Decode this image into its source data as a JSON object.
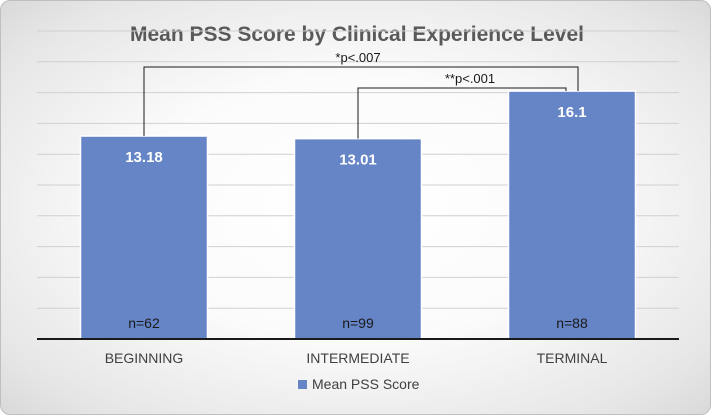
{
  "chart_data": {
    "type": "bar",
    "title": "Mean PSS Score by Clinical Experience Level",
    "categories": [
      "BEGINNING",
      "INTERMEDIATE",
      "TERMINAL"
    ],
    "series": [
      {
        "name": "Mean PSS Score",
        "color": "#6585c6",
        "values": [
          13.18,
          13.01,
          16.1
        ]
      }
    ],
    "value_labels": [
      "13.18",
      "13.01",
      "16.1"
    ],
    "n_labels": [
      "n=62",
      "n=99",
      "n=88"
    ],
    "ylim": [
      0,
      20
    ],
    "grid": true,
    "legend": "bottom",
    "annotations": [
      {
        "text": "*p<.007",
        "from": 0,
        "to": 2
      },
      {
        "text": "**p<.001",
        "from": 1,
        "to": 2
      }
    ]
  }
}
